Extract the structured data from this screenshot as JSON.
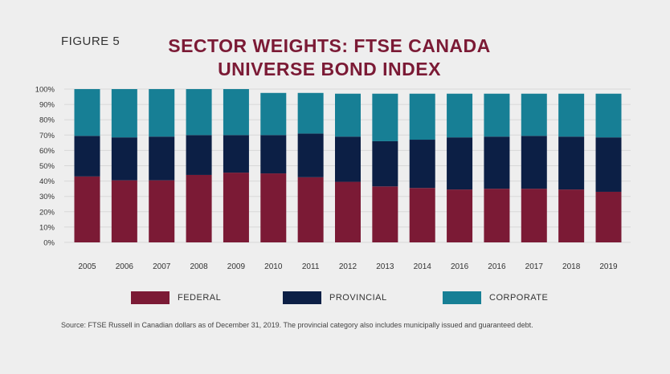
{
  "figure_label": "FIGURE 5",
  "title_lines": [
    "SECTOR WEIGHTS: FTSE CANADA",
    "UNIVERSE BOND INDEX"
  ],
  "source_note": "Source: FTSE Russell in Canadian dollars as of December 31, 2019. The provincial category also includes municipally issued and guaranteed debt.",
  "chart_data": {
    "type": "bar",
    "stacked": true,
    "title": "SECTOR WEIGHTS: FTSE CANADA UNIVERSE BOND INDEX",
    "categories": [
      "2005",
      "2006",
      "2007",
      "2008",
      "2009",
      "2010",
      "2011",
      "2012",
      "2013",
      "2014",
      "2016",
      "2016",
      "2017",
      "2018",
      "2019"
    ],
    "series": [
      {
        "name": "FEDERAL",
        "color": "#7b1a35",
        "values": [
          43,
          40.5,
          40.5,
          44,
          45.5,
          45,
          42.5,
          39.5,
          36.5,
          35.5,
          34.5,
          35,
          35,
          34.5,
          33
        ]
      },
      {
        "name": "PROVINCIAL",
        "color": "#0c1f45",
        "values": [
          26.5,
          28,
          28.5,
          26,
          24.5,
          25,
          28.5,
          29.5,
          29.5,
          31.5,
          34,
          34,
          34.5,
          34.5,
          35.5
        ]
      },
      {
        "name": "CORPORATE",
        "color": "#177f95",
        "values": [
          30.5,
          31.5,
          31,
          30,
          30,
          27.5,
          26.5,
          28,
          31,
          30,
          28.5,
          28,
          27.5,
          28,
          28.5
        ]
      }
    ],
    "yticks": [
      "0%",
      "10%",
      "20%",
      "30%",
      "40%",
      "50%",
      "60%",
      "70%",
      "80%",
      "90%",
      "100%"
    ],
    "ylim": [
      0,
      100
    ],
    "grid": true,
    "legend": "bottom"
  }
}
